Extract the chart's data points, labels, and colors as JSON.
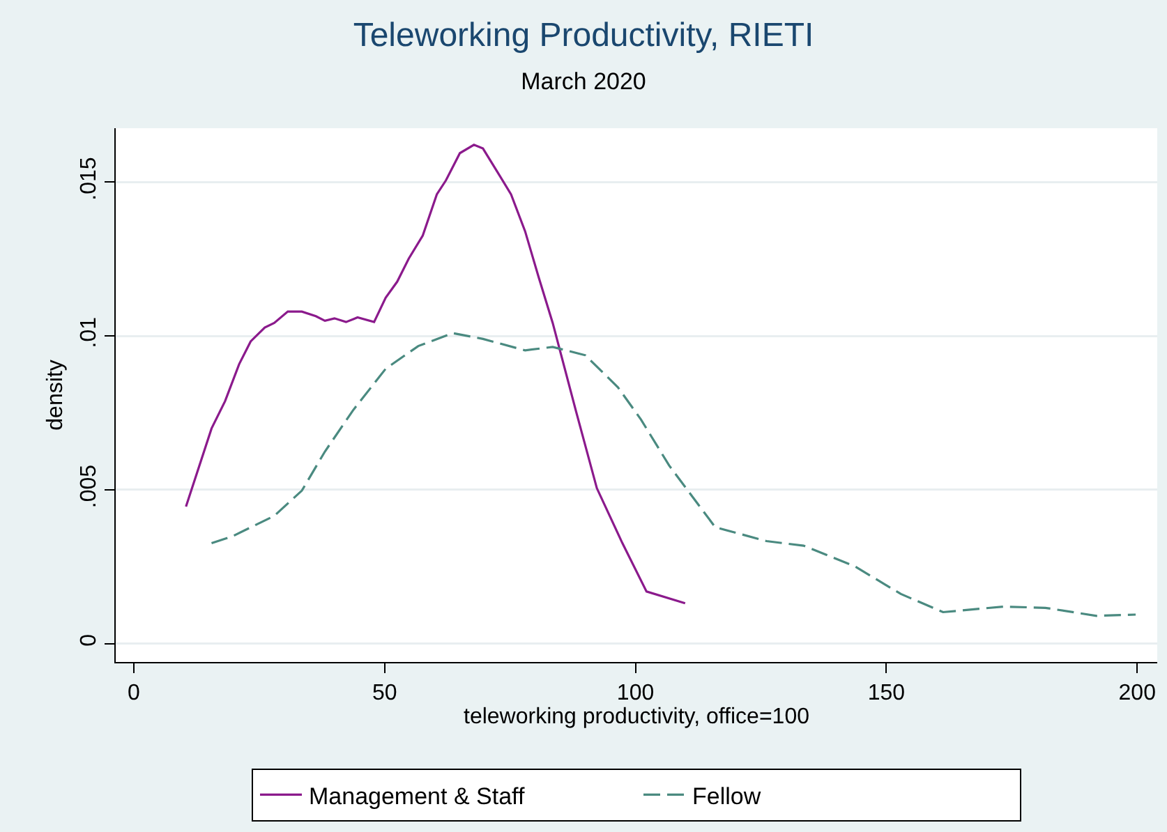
{
  "chart_data": {
    "type": "line",
    "title": "Teleworking Productivity, RIETI",
    "subtitle": "March 2020",
    "xlabel": "teleworking productivity, office=100",
    "ylabel": "density",
    "xlim": [
      -3.6,
      204
    ],
    "xticks": [
      0,
      50,
      100,
      150,
      200
    ],
    "ylim": [
      -0.0006,
      0.01675
    ],
    "yticks": [
      {
        "value": 0,
        "label": "0"
      },
      {
        "value": 0.005,
        "label": ".005"
      },
      {
        "value": 0.01,
        "label": ".01"
      },
      {
        "value": 0.015,
        "label": ".015"
      }
    ],
    "grid": "y",
    "legend": "bottom",
    "series": [
      {
        "name": "Management & Staff",
        "color": "#8b1a8c",
        "line_style": "solid",
        "x": [
          10.4,
          15.5,
          18.2,
          21,
          23.3,
          26.1,
          28,
          30.7,
          33.5,
          36.3,
          38.1,
          40,
          42.3,
          44.6,
          47.9,
          50.2,
          52.5,
          54.8,
          57.6,
          60.4,
          62.2,
          65,
          67.8,
          69.6,
          72.4,
          75.2,
          78,
          80.7,
          83.5,
          88.1,
          92.3,
          97.4,
          102.2,
          109.9
        ],
        "values": [
          0.00445,
          0.00699,
          0.00788,
          0.00908,
          0.00982,
          0.01027,
          0.01042,
          0.01079,
          0.01079,
          0.01064,
          0.01049,
          0.01057,
          0.01045,
          0.0106,
          0.01045,
          0.01124,
          0.01176,
          0.01251,
          0.01326,
          0.0146,
          0.01505,
          0.01594,
          0.01621,
          0.01609,
          0.01535,
          0.0146,
          0.0134,
          0.01191,
          0.01042,
          0.00758,
          0.00505,
          0.00326,
          0.00169,
          0.00131
        ]
      },
      {
        "name": "Fellow",
        "color": "#4a8a80",
        "line_style": "dashed",
        "x": [
          15.5,
          19.6,
          28,
          33.5,
          38.1,
          43.7,
          50.2,
          56.7,
          63.6,
          69.6,
          78,
          83.5,
          90,
          96.5,
          101.1,
          106.7,
          115.9,
          126.1,
          133.5,
          143.7,
          152.9,
          161.3,
          173.3,
          181.7,
          191.9,
          199.7
        ],
        "values": [
          0.00326,
          0.00348,
          0.00415,
          0.00497,
          0.00624,
          0.00758,
          0.00893,
          0.00967,
          0.01009,
          0.0099,
          0.00953,
          0.00964,
          0.00937,
          0.00833,
          0.00728,
          0.00579,
          0.00378,
          0.00333,
          0.00318,
          0.00251,
          0.00161,
          0.00102,
          0.0012,
          0.00116,
          0.0009,
          0.00094
        ]
      }
    ]
  }
}
